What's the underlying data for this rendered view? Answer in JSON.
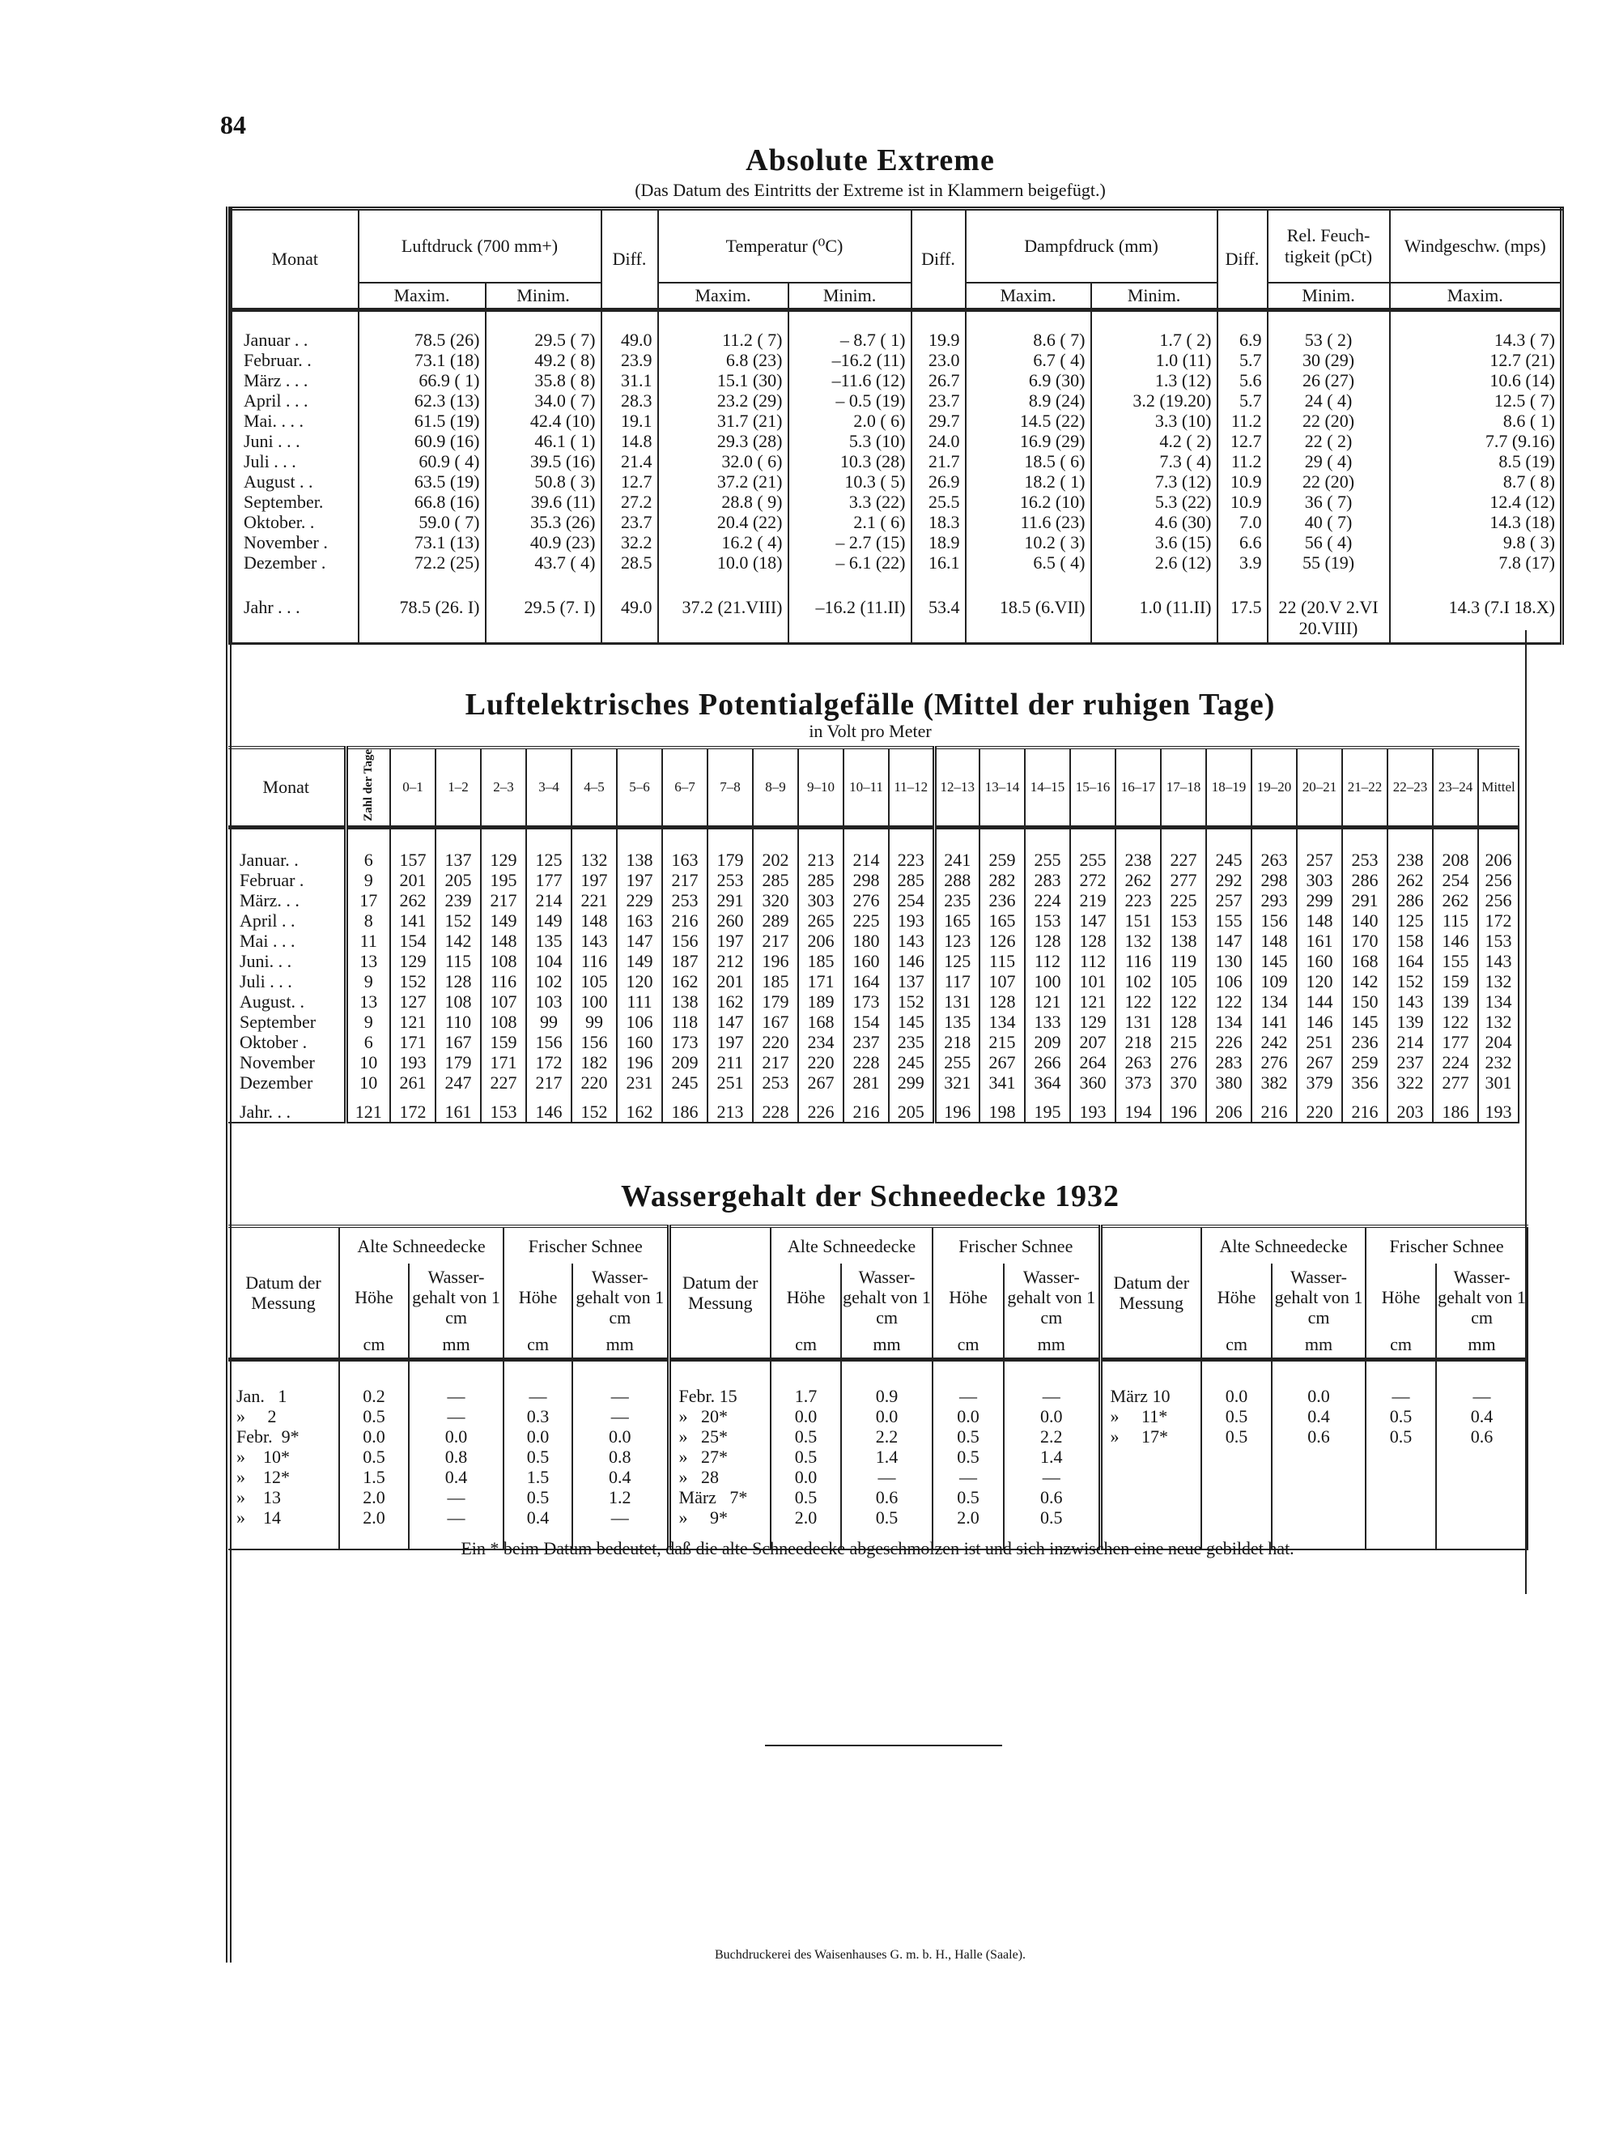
{
  "page_number": "84",
  "extremes": {
    "title": "Absolute Extreme",
    "subtitle": "(Das Datum des Eintritts der Extreme ist in Klammern beigefügt.)",
    "headers": {
      "monat": "Monat",
      "luftdruck": "Luftdruck (700 mm+)",
      "diff": "Diff.",
      "temperatur": "Temperatur (⁰C)",
      "dampfdruck": "Dampfdruck (mm)",
      "feuchtigkeit": "Rel. Feuch-tigkeit (pCt)",
      "wind": "Windgeschw. (mps)",
      "maxim": "Maxim.",
      "minim": "Minim."
    },
    "rows": [
      [
        "Januar . .",
        "78.5 (26)",
        "29.5 ( 7)",
        "49.0",
        "11.2 ( 7)",
        "– 8.7 ( 1)",
        "19.9",
        "8.6 ( 7)",
        "1.7 ( 2)",
        "6.9",
        "53 ( 2)",
        "14.3 ( 7)"
      ],
      [
        "Februar. .",
        "73.1 (18)",
        "49.2 ( 8)",
        "23.9",
        "6.8 (23)",
        "–16.2 (11)",
        "23.0",
        "6.7 ( 4)",
        "1.0 (11)",
        "5.7",
        "30 (29)",
        "12.7 (21)"
      ],
      [
        "März . . .",
        "66.9 ( 1)",
        "35.8 ( 8)",
        "31.1",
        "15.1 (30)",
        "–11.6 (12)",
        "26.7",
        "6.9 (30)",
        "1.3 (12)",
        "5.6",
        "26 (27)",
        "10.6 (14)"
      ],
      [
        "April . . .",
        "62.3 (13)",
        "34.0 ( 7)",
        "28.3",
        "23.2 (29)",
        "– 0.5 (19)",
        "23.7",
        "8.9 (24)",
        "3.2 (19.20)",
        "5.7",
        "24 ( 4)",
        "12.5 ( 7)"
      ],
      [
        "Mai. . . .",
        "61.5 (19)",
        "42.4 (10)",
        "19.1",
        "31.7 (21)",
        "2.0 ( 6)",
        "29.7",
        "14.5 (22)",
        "3.3 (10)",
        "11.2",
        "22 (20)",
        "8.6 ( 1)"
      ],
      [
        "Juni . . .",
        "60.9 (16)",
        "46.1 ( 1)",
        "14.8",
        "29.3 (28)",
        "5.3 (10)",
        "24.0",
        "16.9 (29)",
        "4.2 ( 2)",
        "12.7",
        "22 ( 2)",
        "7.7 (9.16)"
      ],
      [
        "Juli . . .",
        "60.9 ( 4)",
        "39.5 (16)",
        "21.4",
        "32.0 ( 6)",
        "10.3 (28)",
        "21.7",
        "18.5 ( 6)",
        "7.3 ( 4)",
        "11.2",
        "29 ( 4)",
        "8.5 (19)"
      ],
      [
        "August . .",
        "63.5 (19)",
        "50.8 ( 3)",
        "12.7",
        "37.2 (21)",
        "10.3 ( 5)",
        "26.9",
        "18.2 ( 1)",
        "7.3 (12)",
        "10.9",
        "22 (20)",
        "8.7 ( 8)"
      ],
      [
        "September.",
        "66.8 (16)",
        "39.6 (11)",
        "27.2",
        "28.8 ( 9)",
        "3.3 (22)",
        "25.5",
        "16.2 (10)",
        "5.3 (22)",
        "10.9",
        "36 ( 7)",
        "12.4 (12)"
      ],
      [
        "Oktober. .",
        "59.0 ( 7)",
        "35.3 (26)",
        "23.7",
        "20.4 (22)",
        "2.1 ( 6)",
        "18.3",
        "11.6 (23)",
        "4.6 (30)",
        "7.0",
        "40 ( 7)",
        "14.3 (18)"
      ],
      [
        "November .",
        "73.1 (13)",
        "40.9 (23)",
        "32.2",
        "16.2 ( 4)",
        "– 2.7 (15)",
        "18.9",
        "10.2 ( 3)",
        "3.6 (15)",
        "6.6",
        "56 ( 4)",
        "9.8 ( 3)"
      ],
      [
        "Dezember .",
        "72.2 (25)",
        "43.7 ( 4)",
        "28.5",
        "10.0 (18)",
        "– 6.1 (22)",
        "16.1",
        "6.5 ( 4)",
        "2.6 (12)",
        "3.9",
        "55 (19)",
        "7.8 (17)"
      ]
    ],
    "year_row": [
      "Jahr . . .",
      "78.5 (26. I)",
      "29.5 (7. I)",
      "49.0",
      "37.2 (21.VIII)",
      "–16.2 (11.II)",
      "53.4",
      "18.5 (6.VII)",
      "1.0 (11.II)",
      "17.5",
      "22 (20.V 2.VI 20.VIII)",
      "14.3 (7.I 18.X)"
    ]
  },
  "potential": {
    "title": "Luftelektrisches Potentialgefälle (Mittel der ruhigen Tage)",
    "subtitle": "in Volt pro Meter",
    "headers": {
      "monat": "Monat",
      "days": "Zahl der Tage",
      "hours": [
        "0–1",
        "1–2",
        "2–3",
        "3–4",
        "4–5",
        "5–6",
        "6–7",
        "7–8",
        "8–9",
        "9–10",
        "10–11",
        "11–12",
        "12–13",
        "13–14",
        "14–15",
        "15–16",
        "16–17",
        "17–18",
        "18–19",
        "19–20",
        "20–21",
        "21–22",
        "22–23",
        "23–24"
      ],
      "mean": "Mittel"
    },
    "rows": [
      {
        "month": "Januar. .",
        "days": "6",
        "values": [
          "157",
          "137",
          "129",
          "125",
          "132",
          "138",
          "163",
          "179",
          "202",
          "213",
          "214",
          "223",
          "241",
          "259",
          "255",
          "255",
          "238",
          "227",
          "245",
          "263",
          "257",
          "253",
          "238",
          "208"
        ],
        "mean": "206"
      },
      {
        "month": "Februar .",
        "days": "9",
        "values": [
          "201",
          "205",
          "195",
          "177",
          "197",
          "197",
          "217",
          "253",
          "285",
          "285",
          "298",
          "285",
          "288",
          "282",
          "283",
          "272",
          "262",
          "277",
          "292",
          "298",
          "303",
          "286",
          "262",
          "254"
        ],
        "mean": "256"
      },
      {
        "month": "März. . .",
        "days": "17",
        "values": [
          "262",
          "239",
          "217",
          "214",
          "221",
          "229",
          "253",
          "291",
          "320",
          "303",
          "276",
          "254",
          "235",
          "236",
          "224",
          "219",
          "223",
          "225",
          "257",
          "293",
          "299",
          "291",
          "286",
          "262"
        ],
        "mean": "256"
      },
      {
        "month": "April . .",
        "days": "8",
        "values": [
          "141",
          "152",
          "149",
          "149",
          "148",
          "163",
          "216",
          "260",
          "289",
          "265",
          "225",
          "193",
          "165",
          "165",
          "153",
          "147",
          "151",
          "153",
          "155",
          "156",
          "148",
          "140",
          "125",
          "115"
        ],
        "mean": "172"
      },
      {
        "month": "Mai . . .",
        "days": "11",
        "values": [
          "154",
          "142",
          "148",
          "135",
          "143",
          "147",
          "156",
          "197",
          "217",
          "206",
          "180",
          "143",
          "123",
          "126",
          "128",
          "128",
          "132",
          "138",
          "147",
          "148",
          "161",
          "170",
          "158",
          "146"
        ],
        "mean": "153"
      },
      {
        "month": "Juni. . .",
        "days": "13",
        "values": [
          "129",
          "115",
          "108",
          "104",
          "116",
          "149",
          "187",
          "212",
          "196",
          "185",
          "160",
          "146",
          "125",
          "115",
          "112",
          "112",
          "116",
          "119",
          "130",
          "145",
          "160",
          "168",
          "164",
          "155"
        ],
        "mean": "143"
      },
      {
        "month": "Juli . . .",
        "days": "9",
        "values": [
          "152",
          "128",
          "116",
          "102",
          "105",
          "120",
          "162",
          "201",
          "185",
          "171",
          "164",
          "137",
          "117",
          "107",
          "100",
          "101",
          "102",
          "105",
          "106",
          "109",
          "120",
          "142",
          "152",
          "159"
        ],
        "mean": "132"
      },
      {
        "month": "August. .",
        "days": "13",
        "values": [
          "127",
          "108",
          "107",
          "103",
          "100",
          "111",
          "138",
          "162",
          "179",
          "189",
          "173",
          "152",
          "131",
          "128",
          "121",
          "121",
          "122",
          "122",
          "122",
          "134",
          "144",
          "150",
          "143",
          "139"
        ],
        "mean": "134"
      },
      {
        "month": "September",
        "days": "9",
        "values": [
          "121",
          "110",
          "108",
          "99",
          "99",
          "106",
          "118",
          "147",
          "167",
          "168",
          "154",
          "145",
          "135",
          "134",
          "133",
          "129",
          "131",
          "128",
          "134",
          "141",
          "146",
          "145",
          "139",
          "122"
        ],
        "mean": "132"
      },
      {
        "month": "Oktober .",
        "days": "6",
        "values": [
          "171",
          "167",
          "159",
          "156",
          "156",
          "160",
          "173",
          "197",
          "220",
          "234",
          "237",
          "235",
          "218",
          "215",
          "209",
          "207",
          "218",
          "215",
          "226",
          "242",
          "251",
          "236",
          "214",
          "177"
        ],
        "mean": "204"
      },
      {
        "month": "November",
        "days": "10",
        "values": [
          "193",
          "179",
          "171",
          "172",
          "182",
          "196",
          "209",
          "211",
          "217",
          "220",
          "228",
          "245",
          "255",
          "267",
          "266",
          "264",
          "263",
          "276",
          "283",
          "276",
          "267",
          "259",
          "237",
          "224"
        ],
        "mean": "232"
      },
      {
        "month": "Dezember",
        "days": "10",
        "values": [
          "261",
          "247",
          "227",
          "217",
          "220",
          "231",
          "245",
          "251",
          "253",
          "267",
          "281",
          "299",
          "321",
          "341",
          "364",
          "360",
          "373",
          "370",
          "380",
          "382",
          "379",
          "356",
          "322",
          "277"
        ],
        "mean": "301"
      }
    ],
    "year_row": {
      "month": "Jahr. . .",
      "days": "121",
      "values": [
        "172",
        "161",
        "153",
        "146",
        "152",
        "162",
        "186",
        "213",
        "228",
        "226",
        "216",
        "205",
        "196",
        "198",
        "195",
        "193",
        "194",
        "196",
        "206",
        "216",
        "220",
        "216",
        "203",
        "186"
      ],
      "mean": "193"
    }
  },
  "snow": {
    "title": "Wassergehalt der Schneedecke 1932",
    "headers": {
      "date": "Datum der Messung",
      "old": "Alte Schneedecke",
      "fresh": "Frischer Schnee",
      "height": "Höhe",
      "water": "Wasser-gehalt von 1 cm",
      "cm": "cm",
      "mm": "mm"
    },
    "blocks": [
      [
        [
          "Jan.   1",
          "0.2",
          "—",
          "—",
          "—"
        ],
        [
          "»     2",
          "0.5",
          "—",
          "0.3",
          "—"
        ],
        [
          "Febr.  9*",
          "0.0",
          "0.0",
          "0.0",
          "0.0"
        ],
        [
          "»    10*",
          "0.5",
          "0.8",
          "0.5",
          "0.8"
        ],
        [
          "»    12*",
          "1.5",
          "0.4",
          "1.5",
          "0.4"
        ],
        [
          "»    13",
          "2.0",
          "—",
          "0.5",
          "1.2"
        ],
        [
          "»    14",
          "2.0",
          "—",
          "0.4",
          "—"
        ]
      ],
      [
        [
          "Febr. 15",
          "1.7",
          "0.9",
          "—",
          "—"
        ],
        [
          "»   20*",
          "0.0",
          "0.0",
          "0.0",
          "0.0"
        ],
        [
          "»   25*",
          "0.5",
          "2.2",
          "0.5",
          "2.2"
        ],
        [
          "»   27*",
          "0.5",
          "1.4",
          "0.5",
          "1.4"
        ],
        [
          "»   28",
          "0.0",
          "—",
          "—",
          "—"
        ],
        [
          "März   7*",
          "0.5",
          "0.6",
          "0.5",
          "0.6"
        ],
        [
          "»     9*",
          "2.0",
          "0.5",
          "2.0",
          "0.5"
        ]
      ],
      [
        [
          "März 10",
          "0.0",
          "0.0",
          "—",
          "—"
        ],
        [
          "»     11*",
          "0.5",
          "0.4",
          "0.5",
          "0.4"
        ],
        [
          "»     17*",
          "0.5",
          "0.6",
          "0.5",
          "0.6"
        ]
      ]
    ],
    "footnote": "Ein * beim Datum bedeutet, daß die alte Schneedecke abgeschmolzen ist und sich inzwischen eine neue gebildet hat."
  },
  "printer": "Buchdruckerei des Waisenhauses G. m. b. H., Halle (Saale)."
}
